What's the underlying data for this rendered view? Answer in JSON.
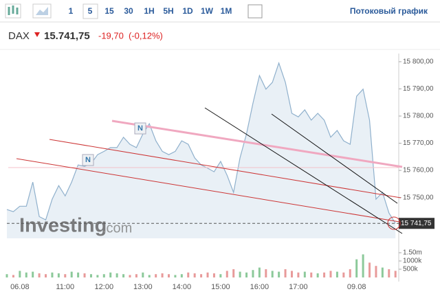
{
  "toolbar": {
    "intervals": [
      "1",
      "5",
      "15",
      "30",
      "1H",
      "5H",
      "1D",
      "1W",
      "1M"
    ],
    "active": "5",
    "link": "Потоковый график"
  },
  "header": {
    "symbol": "DAX",
    "price": "15.741,75",
    "change": "-19,70",
    "change_pct": "(-0,12%)"
  },
  "watermark": {
    "brand": "Investing",
    "suffix": ".com"
  },
  "chart_data": {
    "type": "line",
    "color": "#8fb0cc",
    "fill": "#e9f0f6",
    "categories": [
      null,
      null,
      "06.08",
      null,
      null,
      null,
      null,
      null,
      null,
      "11:00",
      null,
      null,
      null,
      null,
      null,
      "12:00",
      null,
      null,
      null,
      null,
      null,
      "13:00",
      null,
      null,
      null,
      null,
      null,
      "14:00",
      null,
      null,
      null,
      null,
      null,
      "15:00",
      null,
      null,
      null,
      null,
      null,
      "16:00",
      null,
      null,
      null,
      null,
      null,
      "17:00",
      null,
      null,
      null,
      null,
      null,
      null,
      null,
      null,
      "09.08",
      null,
      null,
      null,
      null,
      null,
      null
    ],
    "values": [
      15745.6,
      15744.8,
      15746.8,
      15746.8,
      15755.7,
      15743,
      15741.8,
      15749.4,
      15754.4,
      15750.6,
      15755.7,
      15762,
      15761.5,
      15762.5,
      15765.8,
      15767,
      15768.4,
      15768.4,
      15772.2,
      15769.6,
      15768.4,
      15773.4,
      15777.2,
      15770.9,
      15767,
      15765.8,
      15767,
      15770.9,
      15769.6,
      15764.6,
      15762,
      15760.8,
      15759.5,
      15763.3,
      15758.2,
      15751.9,
      15764.6,
      15773.4,
      15784.8,
      15794.9,
      15789.9,
      15792.4,
      15799.5,
      15792.4,
      15781,
      15779.7,
      15782.3,
      15778.5,
      15781,
      15778.5,
      15772.2,
      15774.7,
      15770.9,
      15769.6,
      15787.3,
      15789.9,
      15778.5,
      15749.4,
      15751.9,
      15744.3,
      15740.5
    ],
    "ylim": [
      15735,
      15803
    ],
    "yticks": [
      {
        "value": 15750,
        "label": "15 750,00"
      },
      {
        "value": 15760,
        "label": "15 760,00"
      },
      {
        "value": 15770,
        "label": "15 770,00"
      },
      {
        "value": 15780,
        "label": "15 780,00"
      },
      {
        "value": 15790,
        "label": "15 790,00"
      },
      {
        "value": 15800,
        "label": "15 800,00"
      }
    ],
    "last_price_label": "15 741,75",
    "markers": [
      "N",
      "N"
    ],
    "volume": {
      "values": [
        200000,
        150000,
        400000,
        300000,
        350000,
        250000,
        200000,
        300000,
        250000,
        200000,
        350000,
        300000,
        250000,
        200000,
        150000,
        200000,
        300000,
        250000,
        200000,
        150000,
        200000,
        300000,
        150000,
        200000,
        250000,
        200000,
        150000,
        200000,
        300000,
        250000,
        200000,
        300000,
        250000,
        200000,
        400000,
        500000,
        350000,
        300000,
        450000,
        600000,
        500000,
        400000,
        350000,
        500000,
        400000,
        300000,
        350000,
        300000,
        250000,
        300000,
        400000,
        350000,
        300000,
        500000,
        1100000,
        1400000,
        900000,
        700000,
        600000,
        500000,
        400000
      ],
      "ylim": [
        0,
        2000000
      ],
      "yticks": [
        {
          "value": 500000,
          "label": "500k"
        },
        {
          "value": 1000000,
          "label": "1000k"
        },
        {
          "value": 1500000,
          "label": "1.50m"
        }
      ],
      "up_color": "#8cc99a",
      "down_color": "#e89a9a"
    }
  }
}
